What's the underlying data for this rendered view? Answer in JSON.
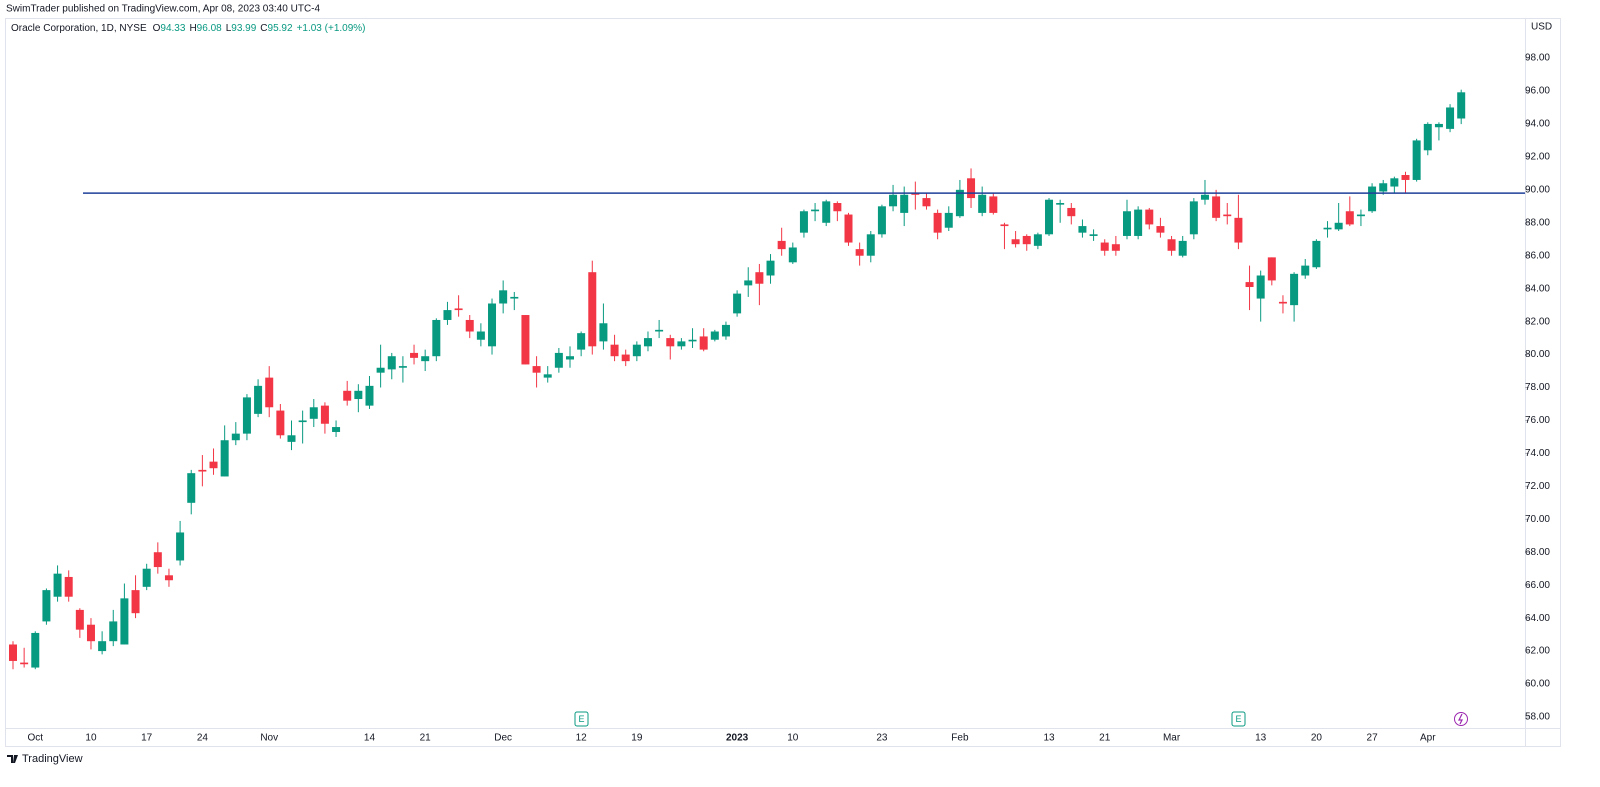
{
  "header": {
    "published": "SwimTrader published on TradingView.com, Apr 08, 2023 03:40 UTC-4",
    "symbol": "Oracle Corporation, 1D, NYSE",
    "ohlc": [
      {
        "label": "O",
        "value": 94.33
      },
      {
        "label": "H",
        "value": 96.08
      },
      {
        "label": "L",
        "value": 93.99
      },
      {
        "label": "C",
        "value": 95.92
      }
    ],
    "change": "+1.03 (+1.09%)"
  },
  "footer": {
    "brand": "TradingView"
  },
  "events": [
    "E",
    "E"
  ],
  "chart_data": {
    "type": "candlestick",
    "currency": "USD",
    "up_color": "#089981",
    "down_color": "#f23645",
    "grid": false,
    "horizontal_line": {
      "value": 89.8,
      "color": "#1e3f9a"
    },
    "ylim": [
      57.33,
      100.31
    ],
    "yticks": [
      {
        "value": 58,
        "label": "58.00"
      },
      {
        "value": 60,
        "label": "60.00"
      },
      {
        "value": 62,
        "label": "62.00"
      },
      {
        "value": 64,
        "label": "64.00"
      },
      {
        "value": 66,
        "label": "66.00"
      },
      {
        "value": 68,
        "label": "68.00"
      },
      {
        "value": 70,
        "label": "70.00"
      },
      {
        "value": 72,
        "label": "72.00"
      },
      {
        "value": 74,
        "label": "74.00"
      },
      {
        "value": 76,
        "label": "76.00"
      },
      {
        "value": 78,
        "label": "78.00"
      },
      {
        "value": 80,
        "label": "80.00"
      },
      {
        "value": 82,
        "label": "82.00"
      },
      {
        "value": 84,
        "label": "84.00"
      },
      {
        "value": 86,
        "label": "86.00"
      },
      {
        "value": 88,
        "label": "88.00"
      },
      {
        "value": 90,
        "label": "90.00"
      },
      {
        "value": 92,
        "label": "92.00"
      },
      {
        "value": 94,
        "label": "94.00"
      },
      {
        "value": 96,
        "label": "96.00"
      },
      {
        "value": 98,
        "label": "98.00"
      }
    ],
    "categories": [
      null,
      null,
      "Oct",
      null,
      null,
      null,
      null,
      "10",
      null,
      null,
      null,
      null,
      "17",
      null,
      null,
      null,
      null,
      "24",
      null,
      null,
      null,
      null,
      null,
      "Nov",
      null,
      null,
      null,
      null,
      null,
      null,
      null,
      null,
      "14",
      null,
      null,
      null,
      null,
      "21",
      null,
      null,
      null,
      null,
      null,
      null,
      "Dec",
      null,
      null,
      null,
      null,
      null,
      null,
      "12",
      null,
      null,
      null,
      null,
      "19",
      null,
      null,
      null,
      null,
      null,
      null,
      null,
      null,
      "2023",
      null,
      null,
      null,
      null,
      "10",
      null,
      null,
      null,
      null,
      null,
      null,
      null,
      "23",
      null,
      null,
      null,
      null,
      null,
      null,
      "Feb",
      null,
      null,
      null,
      null,
      null,
      null,
      null,
      "13",
      null,
      null,
      null,
      null,
      "21",
      null,
      null,
      null,
      null,
      null,
      "Mar",
      null,
      null,
      null,
      null,
      null,
      null,
      null,
      "13",
      null,
      null,
      null,
      null,
      "20",
      null,
      null,
      null,
      null,
      "27",
      null,
      null,
      null,
      null,
      "Apr",
      null,
      null,
      null
    ],
    "open": [
      62.4,
      61.3,
      61.0,
      63.8,
      65.3,
      66.5,
      64.5,
      63.6,
      62.0,
      62.6,
      62.4,
      65.7,
      65.9,
      68.0,
      66.6,
      67.5,
      71.0,
      73.0,
      73.5,
      72.6,
      74.8,
      75.2,
      76.4,
      78.6,
      76.6,
      74.7,
      75.9,
      76.1,
      76.9,
      75.3,
      77.8,
      77.3,
      76.9,
      78.9,
      79.1,
      79.2,
      80.1,
      79.6,
      79.9,
      82.1,
      82.8,
      82.1,
      80.9,
      80.5,
      83.1,
      83.4,
      82.4,
      79.3,
      78.6,
      79.2,
      79.7,
      80.3,
      85.0,
      80.8,
      80.6,
      80.0,
      79.9,
      80.5,
      81.4,
      81.0,
      80.5,
      80.8,
      81.1,
      80.9,
      81.1,
      82.5,
      84.2,
      85.0,
      84.8,
      86.9,
      85.6,
      87.4,
      88.7,
      88.0,
      89.2,
      88.5,
      86.4,
      86.0,
      87.3,
      89.0,
      88.6,
      89.8,
      89.5,
      88.6,
      87.7,
      88.4,
      90.7,
      88.6,
      89.6,
      87.9,
      87.0,
      87.2,
      86.6,
      87.3,
      89.1,
      88.9,
      87.4,
      87.2,
      86.8,
      86.7,
      87.2,
      87.2,
      88.8,
      87.8,
      87.0,
      86.0,
      87.3,
      89.4,
      89.6,
      88.5,
      88.3,
      84.4,
      83.4,
      85.9,
      83.2,
      83.0,
      84.8,
      85.3,
      87.6,
      87.6,
      88.7,
      88.4,
      88.7,
      89.9,
      90.2,
      90.9,
      90.6,
      92.4,
      93.8,
      93.7,
      94.33
    ],
    "high": [
      62.6,
      62.2,
      63.2,
      65.8,
      67.2,
      66.9,
      64.6,
      64.0,
      63.2,
      64.5,
      66.1,
      66.6,
      67.3,
      68.6,
      67.0,
      69.9,
      73.0,
      73.9,
      74.3,
      75.7,
      75.9,
      77.6,
      78.5,
      79.3,
      77.0,
      76.0,
      76.6,
      77.3,
      77.1,
      76.0,
      78.4,
      78.2,
      78.7,
      80.6,
      80.1,
      79.9,
      80.6,
      80.3,
      82.2,
      83.2,
      83.6,
      82.4,
      81.9,
      83.4,
      84.5,
      83.8,
      82.4,
      79.9,
      79.3,
      80.4,
      80.5,
      81.4,
      85.7,
      83.1,
      81.2,
      80.3,
      80.8,
      81.4,
      82.1,
      81.2,
      81.0,
      81.6,
      81.6,
      81.5,
      82.0,
      83.9,
      85.3,
      85.5,
      86.1,
      87.7,
      86.8,
      88.8,
      89.2,
      89.4,
      89.3,
      88.6,
      86.8,
      87.5,
      89.1,
      90.3,
      90.2,
      90.5,
      89.8,
      88.8,
      89.0,
      90.6,
      91.3,
      90.2,
      89.8,
      88.0,
      87.5,
      87.3,
      87.4,
      89.5,
      89.4,
      89.2,
      88.2,
      87.6,
      87.0,
      87.2,
      89.4,
      89.0,
      88.9,
      88.3,
      87.2,
      87.2,
      89.5,
      90.6,
      90.0,
      89.2,
      89.7,
      85.4,
      85.1,
      85.9,
      83.6,
      85.0,
      85.8,
      87.0,
      88.1,
      89.2,
      89.6,
      88.8,
      90.4,
      90.6,
      90.8,
      91.1,
      93.1,
      94.1,
      94.1,
      95.2,
      96.08
    ],
    "low": [
      60.9,
      61.0,
      60.9,
      63.6,
      65.0,
      65.0,
      62.8,
      62.1,
      61.8,
      62.3,
      62.4,
      64.0,
      65.7,
      66.7,
      65.9,
      67.2,
      70.3,
      72.0,
      72.7,
      72.6,
      74.5,
      74.8,
      76.2,
      76.2,
      74.9,
      74.2,
      74.6,
      75.6,
      75.2,
      75.0,
      76.9,
      76.5,
      76.7,
      78.0,
      78.5,
      78.3,
      79.4,
      79.0,
      79.6,
      81.8,
      82.3,
      81.0,
      80.5,
      80.0,
      82.5,
      82.7,
      79.4,
      78.0,
      78.3,
      78.9,
      79.2,
      79.9,
      80.0,
      80.3,
      79.6,
      79.3,
      79.6,
      80.2,
      81.0,
      79.7,
      80.3,
      80.4,
      80.2,
      80.8,
      80.9,
      82.3,
      83.5,
      83.0,
      84.3,
      86.0,
      85.5,
      87.1,
      88.1,
      87.8,
      88.1,
      86.6,
      85.4,
      85.6,
      87.1,
      88.7,
      87.8,
      88.8,
      88.8,
      87.0,
      87.5,
      88.3,
      88.9,
      88.4,
      88.5,
      86.4,
      86.5,
      86.3,
      86.4,
      87.2,
      88.0,
      87.9,
      87.1,
      86.9,
      86.0,
      86.0,
      87.0,
      87.0,
      87.6,
      87.1,
      86.0,
      85.9,
      87.0,
      89.1,
      88.1,
      87.9,
      86.4,
      82.7,
      82.0,
      84.2,
      82.5,
      82.0,
      84.6,
      85.2,
      87.1,
      87.5,
      87.8,
      87.8,
      88.6,
      89.7,
      89.8,
      89.8,
      90.5,
      92.1,
      93.0,
      93.5,
      93.99
    ],
    "close": [
      61.4,
      61.2,
      63.1,
      65.7,
      66.7,
      65.3,
      63.3,
      62.6,
      62.6,
      63.8,
      65.2,
      64.3,
      67.0,
      67.1,
      66.3,
      69.2,
      72.8,
      72.9,
      73.1,
      74.8,
      75.2,
      77.4,
      78.1,
      76.8,
      75.1,
      75.1,
      76.0,
      76.8,
      75.8,
      75.6,
      77.2,
      77.8,
      78.1,
      79.2,
      79.9,
      79.3,
      79.8,
      79.9,
      82.1,
      82.7,
      82.7,
      81.4,
      81.4,
      83.1,
      83.9,
      83.5,
      79.4,
      78.9,
      78.8,
      80.1,
      79.9,
      81.3,
      80.5,
      81.9,
      79.9,
      79.6,
      80.6,
      81.0,
      81.5,
      80.5,
      80.8,
      80.9,
      80.3,
      81.4,
      81.8,
      83.7,
      84.5,
      84.3,
      85.7,
      86.4,
      86.5,
      88.7,
      88.8,
      89.3,
      88.7,
      86.8,
      86.0,
      87.3,
      89.0,
      89.7,
      89.7,
      89.7,
      89.0,
      87.4,
      88.6,
      90.0,
      89.5,
      89.7,
      88.6,
      87.8,
      86.7,
      86.7,
      87.3,
      89.4,
      89.2,
      88.4,
      87.8,
      87.3,
      86.3,
      86.3,
      88.7,
      88.8,
      87.9,
      87.4,
      86.3,
      86.9,
      89.3,
      89.7,
      88.3,
      88.4,
      86.8,
      84.1,
      84.8,
      84.5,
      83.1,
      84.9,
      85.4,
      86.9,
      87.7,
      88.0,
      87.9,
      88.5,
      90.2,
      90.4,
      90.7,
      90.6,
      93.0,
      94.0,
      94.0,
      95.0,
      95.92
    ]
  }
}
